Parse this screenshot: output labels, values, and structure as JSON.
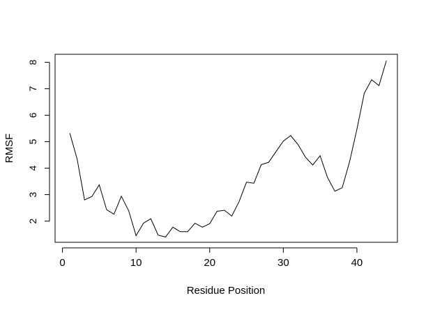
{
  "chart_data": {
    "type": "line",
    "title": "",
    "xlabel": "Residue Position",
    "ylabel": "RMSF",
    "xlim": [
      -1,
      45.5
    ],
    "ylim": [
      1.2,
      8.3
    ],
    "xticks": [
      0,
      10,
      20,
      30,
      40
    ],
    "yticks": [
      2,
      3,
      4,
      5,
      6,
      7,
      8
    ],
    "grid": false,
    "series": [
      {
        "x": [
          1,
          2,
          3,
          4,
          5,
          6,
          7,
          8,
          9,
          10,
          11,
          12,
          13,
          14,
          15,
          16,
          17,
          18,
          19,
          20,
          21,
          22,
          23,
          24,
          25,
          26,
          27,
          28,
          29,
          30,
          31,
          32,
          33,
          34,
          35,
          36,
          37,
          38,
          39,
          40,
          41,
          42,
          43,
          44
        ],
        "y": [
          5.32,
          4.34,
          2.8,
          2.93,
          3.37,
          2.43,
          2.26,
          2.94,
          2.39,
          1.45,
          1.92,
          2.09,
          1.47,
          1.4,
          1.77,
          1.6,
          1.6,
          1.92,
          1.77,
          1.9,
          2.37,
          2.41,
          2.19,
          2.74,
          3.47,
          3.43,
          4.13,
          4.22,
          4.62,
          5.02,
          5.23,
          4.89,
          4.42,
          4.12,
          4.47,
          3.65,
          3.13,
          3.26,
          4.24,
          5.47,
          6.83,
          7.34,
          7.12,
          8.06
        ],
        "color": "#000000"
      }
    ]
  }
}
